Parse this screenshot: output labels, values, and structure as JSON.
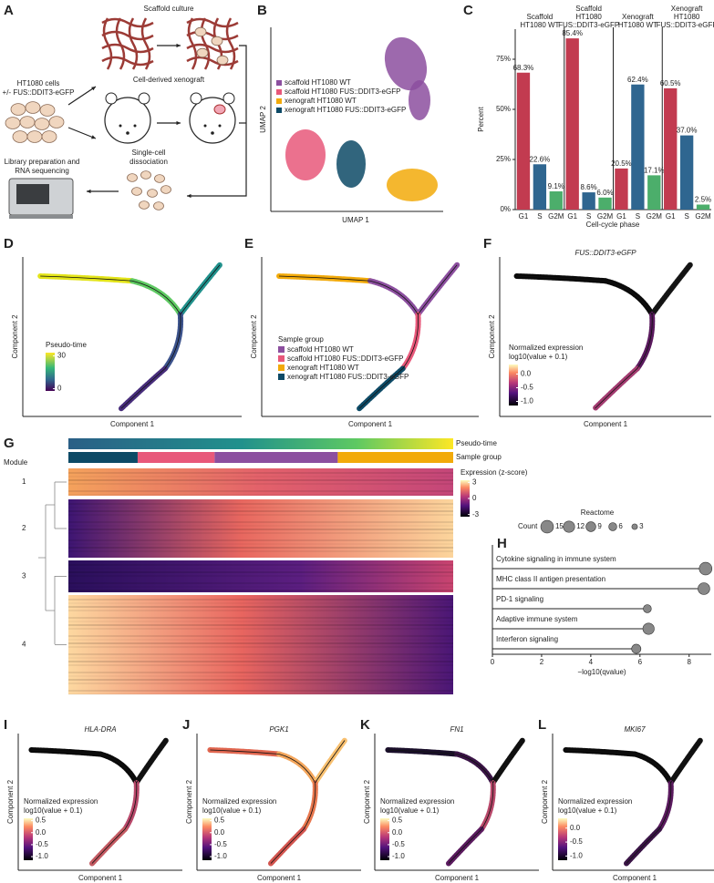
{
  "A": {
    "label": "A",
    "scaffold": "Scaffold culture",
    "cells": [
      "HT1080 cells",
      "+/- FUS::DDIT3-eGFP"
    ],
    "xenograft": "Cell-derived xenograft",
    "dissociation": [
      "Single-cell",
      "dissociation"
    ],
    "sequencing": [
      "Library preparation and",
      "RNA sequencing"
    ]
  },
  "B": {
    "label": "B",
    "xlabel": "UMAP 1",
    "ylabel": "UMAP 2",
    "groups": [
      {
        "name": "scaffold HT1080 WT",
        "color": "#8c4f9f"
      },
      {
        "name": "scaffold HT1080 FUS::DDIT3-eGFP",
        "color": "#e8587a"
      },
      {
        "name": "xenograft HT1080 WT",
        "color": "#f2aa0a"
      },
      {
        "name": "xenograft  HT1080 FUS::DDIT3-eGFP",
        "color": "#0d4a66"
      }
    ]
  },
  "chart_data": [
    {
      "type": "bar",
      "label": "C",
      "xlabel": "Cell-cycle phase",
      "ylabel": "Percent",
      "categories": [
        "G1",
        "S",
        "G2M"
      ],
      "colors": [
        "#c23b50",
        "#2f6690",
        "#4cae6b"
      ],
      "facets": [
        {
          "title": [
            "Scaffold",
            "HT1080 WT"
          ],
          "values": [
            68.3,
            22.6,
            9.1
          ],
          "value_labels": [
            "68.3%",
            "22.6%",
            "9.1%"
          ]
        },
        {
          "title": [
            "Scaffold",
            "HT1080",
            "FUS::DDIT3-eGFP"
          ],
          "values": [
            85.4,
            8.6,
            6.0
          ],
          "value_labels": [
            "85.4%",
            "8.6%",
            "6.0%"
          ]
        },
        {
          "title": [
            "Xenograft",
            "HT1080 WT"
          ],
          "values": [
            20.5,
            62.4,
            17.1
          ],
          "value_labels": [
            "20.5%",
            "62.4%",
            "17.1%"
          ]
        },
        {
          "title": [
            "Xenograft",
            "HT1080",
            "FUS::DDIT3-eGFP"
          ],
          "values": [
            60.5,
            37.0,
            2.5
          ],
          "value_labels": [
            "60.5%",
            "37.0%",
            "2.5%"
          ]
        }
      ],
      "ylim": [
        0,
        90
      ],
      "yticks": [
        {
          "value": 0,
          "label": "0%"
        },
        {
          "value": 25,
          "label": "25%"
        },
        {
          "value": 50,
          "label": "50%"
        },
        {
          "value": 75,
          "label": "75%"
        }
      ]
    },
    {
      "type": "lollipop",
      "label": "H",
      "title": "Reactome",
      "size_title": "Count",
      "size_legend": [
        15,
        12,
        9,
        6,
        3
      ],
      "categories": [
        "Cytokine signaling in immune system",
        "MHC class II antigen presentation",
        "PD-1 signaling",
        "Adaptive immune system",
        "Interferon signaling"
      ],
      "values": [
        8.67,
        8.6,
        6.3,
        6.35,
        5.85
      ],
      "sizes": [
        15,
        13,
        6,
        12,
        8
      ],
      "color": "#888888",
      "xlim": [
        0,
        8.9
      ],
      "xticks": [
        0,
        2,
        4,
        6,
        8
      ],
      "xlabel": "−log10(qvalue)"
    }
  ],
  "D": {
    "label": "D",
    "xlabel": "Component 1",
    "ylabel": "Component 2",
    "legend": {
      "title": [
        "Pseudo-time"
      ],
      "lim": [
        -2,
        33
      ],
      "ticks": [
        30,
        0
      ]
    }
  },
  "E": {
    "label": "E",
    "xlabel": "Component 1",
    "ylabel": "Component 2",
    "legend_title": "Sample group",
    "groups": [
      {
        "name": "scaffold HT1080 WT",
        "color": "#8c4f9f"
      },
      {
        "name": "scaffold HT1080 FUS::DDIT3-eGFP",
        "color": "#e8587a"
      },
      {
        "name": "xenograft HT1080 WT",
        "color": "#f2aa0a"
      },
      {
        "name": "xenograft  HT1080 FUS::DDIT3-eGFP",
        "color": "#0d4a66"
      }
    ]
  },
  "F": {
    "label": "F",
    "title": "FUS::DDIT3-eGFP",
    "xlabel": "Component 1",
    "ylabel": "Component 2",
    "legend": {
      "title": [
        "Normalized expression",
        "log10(value + 0.1)"
      ],
      "lim": [
        -1.15,
        0.35
      ],
      "ticks": [
        {
          "value": 0,
          "label": "0.0"
        },
        -0.5,
        {
          "value": -1,
          "label": "-1.0"
        }
      ]
    }
  },
  "G": {
    "label": "G",
    "module_title": "Module",
    "modules": [
      "1",
      "2",
      "3",
      "4"
    ],
    "tracks": [
      "Pseudo-time",
      "Sample group"
    ],
    "legend": {
      "title": [
        "Expression (z-score)"
      ],
      "lim": [
        -3.4,
        3.4
      ],
      "ticks": [
        3,
        0,
        -3
      ]
    }
  },
  "I": {
    "label": "I",
    "title": "HLA-DRA",
    "xlabel": "Component 1",
    "ylabel": "Component 2",
    "legend": {
      "title": [
        "Normalized expression",
        "log10(value + 0.1)"
      ],
      "lim": [
        -1.15,
        0.6
      ],
      "ticks": [
        0.5,
        {
          "value": 0,
          "label": "0.0"
        },
        -0.5,
        {
          "value": -1,
          "label": "-1.0"
        }
      ]
    }
  },
  "J": {
    "label": "J",
    "title": "PGK1",
    "xlabel": "Component 1",
    "ylabel": "Component 2",
    "legend": {
      "title": [
        "Normalized expression",
        "log10(value + 0.1)"
      ],
      "lim": [
        -1.15,
        0.6
      ],
      "ticks": [
        0.5,
        {
          "value": 0,
          "label": "0.0"
        },
        -0.5,
        {
          "value": -1,
          "label": "-1.0"
        }
      ]
    }
  },
  "K": {
    "label": "K",
    "title": "FN1",
    "xlabel": "Component 1",
    "ylabel": "Component 2",
    "legend": {
      "title": [
        "Normalized expression",
        "log10(value + 0.1)"
      ],
      "lim": [
        -1.15,
        0.6
      ],
      "ticks": [
        0.5,
        {
          "value": 0,
          "label": "0.0"
        },
        -0.5,
        {
          "value": -1,
          "label": "-1.0"
        }
      ]
    }
  },
  "L": {
    "label": "L",
    "title": "MKI67",
    "xlabel": "Component 1",
    "ylabel": "Component 2",
    "legend": {
      "title": [
        "Normalized expression",
        "log10(value + 0.1)"
      ],
      "lim": [
        -1.15,
        0.35
      ],
      "ticks": [
        {
          "value": 0,
          "label": "0.0"
        },
        -0.5,
        {
          "value": -1,
          "label": "-1.0"
        }
      ]
    }
  }
}
